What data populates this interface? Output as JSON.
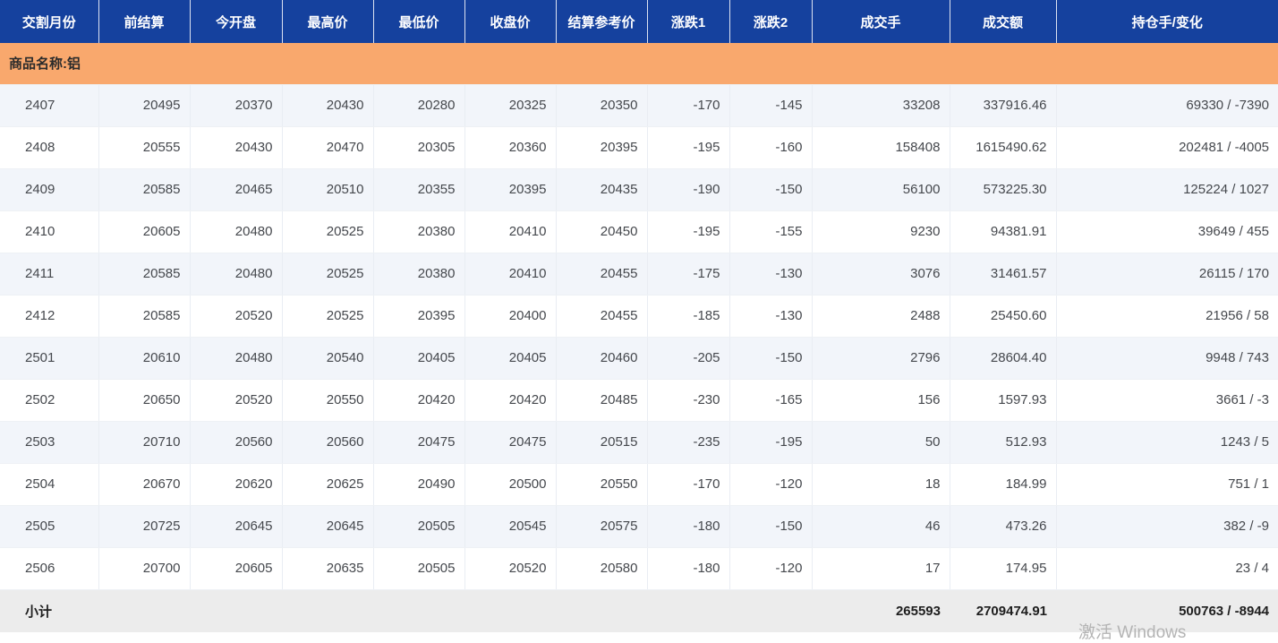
{
  "colors": {
    "header_bg": "#15419E",
    "header_text": "#FFFFFF",
    "group_bg": "#F9A86D",
    "row_alt_bg": "#F2F5FA",
    "footer_bg": "#ECECEC"
  },
  "table": {
    "columns": [
      {
        "key": "month",
        "label": "交割月份"
      },
      {
        "key": "prev-settle",
        "label": "前结算"
      },
      {
        "key": "open",
        "label": "今开盘"
      },
      {
        "key": "high",
        "label": "最高价"
      },
      {
        "key": "low",
        "label": "最低价"
      },
      {
        "key": "close",
        "label": "收盘价"
      },
      {
        "key": "settle-ref",
        "label": "结算参考价"
      },
      {
        "key": "change1",
        "label": "涨跌1"
      },
      {
        "key": "change2",
        "label": "涨跌2"
      },
      {
        "key": "volume",
        "label": "成交手"
      },
      {
        "key": "turnover",
        "label": "成交额"
      },
      {
        "key": "open-interest",
        "label": "持仓手/变化"
      }
    ],
    "group_label": "商品名称:铝",
    "rows": [
      [
        "2407",
        "20495",
        "20370",
        "20430",
        "20280",
        "20325",
        "20350",
        "-170",
        "-145",
        "33208",
        "337916.46",
        "69330 / -7390"
      ],
      [
        "2408",
        "20555",
        "20430",
        "20470",
        "20305",
        "20360",
        "20395",
        "-195",
        "-160",
        "158408",
        "1615490.62",
        "202481 / -4005"
      ],
      [
        "2409",
        "20585",
        "20465",
        "20510",
        "20355",
        "20395",
        "20435",
        "-190",
        "-150",
        "56100",
        "573225.30",
        "125224 / 1027"
      ],
      [
        "2410",
        "20605",
        "20480",
        "20525",
        "20380",
        "20410",
        "20450",
        "-195",
        "-155",
        "9230",
        "94381.91",
        "39649 / 455"
      ],
      [
        "2411",
        "20585",
        "20480",
        "20525",
        "20380",
        "20410",
        "20455",
        "-175",
        "-130",
        "3076",
        "31461.57",
        "26115 / 170"
      ],
      [
        "2412",
        "20585",
        "20520",
        "20525",
        "20395",
        "20400",
        "20455",
        "-185",
        "-130",
        "2488",
        "25450.60",
        "21956 / 58"
      ],
      [
        "2501",
        "20610",
        "20480",
        "20540",
        "20405",
        "20405",
        "20460",
        "-205",
        "-150",
        "2796",
        "28604.40",
        "9948 / 743"
      ],
      [
        "2502",
        "20650",
        "20520",
        "20550",
        "20420",
        "20420",
        "20485",
        "-230",
        "-165",
        "156",
        "1597.93",
        "3661 / -3"
      ],
      [
        "2503",
        "20710",
        "20560",
        "20560",
        "20475",
        "20475",
        "20515",
        "-235",
        "-195",
        "50",
        "512.93",
        "1243 / 5"
      ],
      [
        "2504",
        "20670",
        "20620",
        "20625",
        "20490",
        "20500",
        "20550",
        "-170",
        "-120",
        "18",
        "184.99",
        "751 / 1"
      ],
      [
        "2505",
        "20725",
        "20645",
        "20645",
        "20505",
        "20545",
        "20575",
        "-180",
        "-150",
        "46",
        "473.26",
        "382 / -9"
      ],
      [
        "2506",
        "20700",
        "20605",
        "20635",
        "20505",
        "20520",
        "20580",
        "-180",
        "-120",
        "17",
        "174.95",
        "23 / 4"
      ]
    ],
    "footer": {
      "label": "小计",
      "volume_total": "265593",
      "turnover_total": "2709474.91",
      "oi_total": "500763 / -8944"
    }
  },
  "watermark": "激活 Windows"
}
